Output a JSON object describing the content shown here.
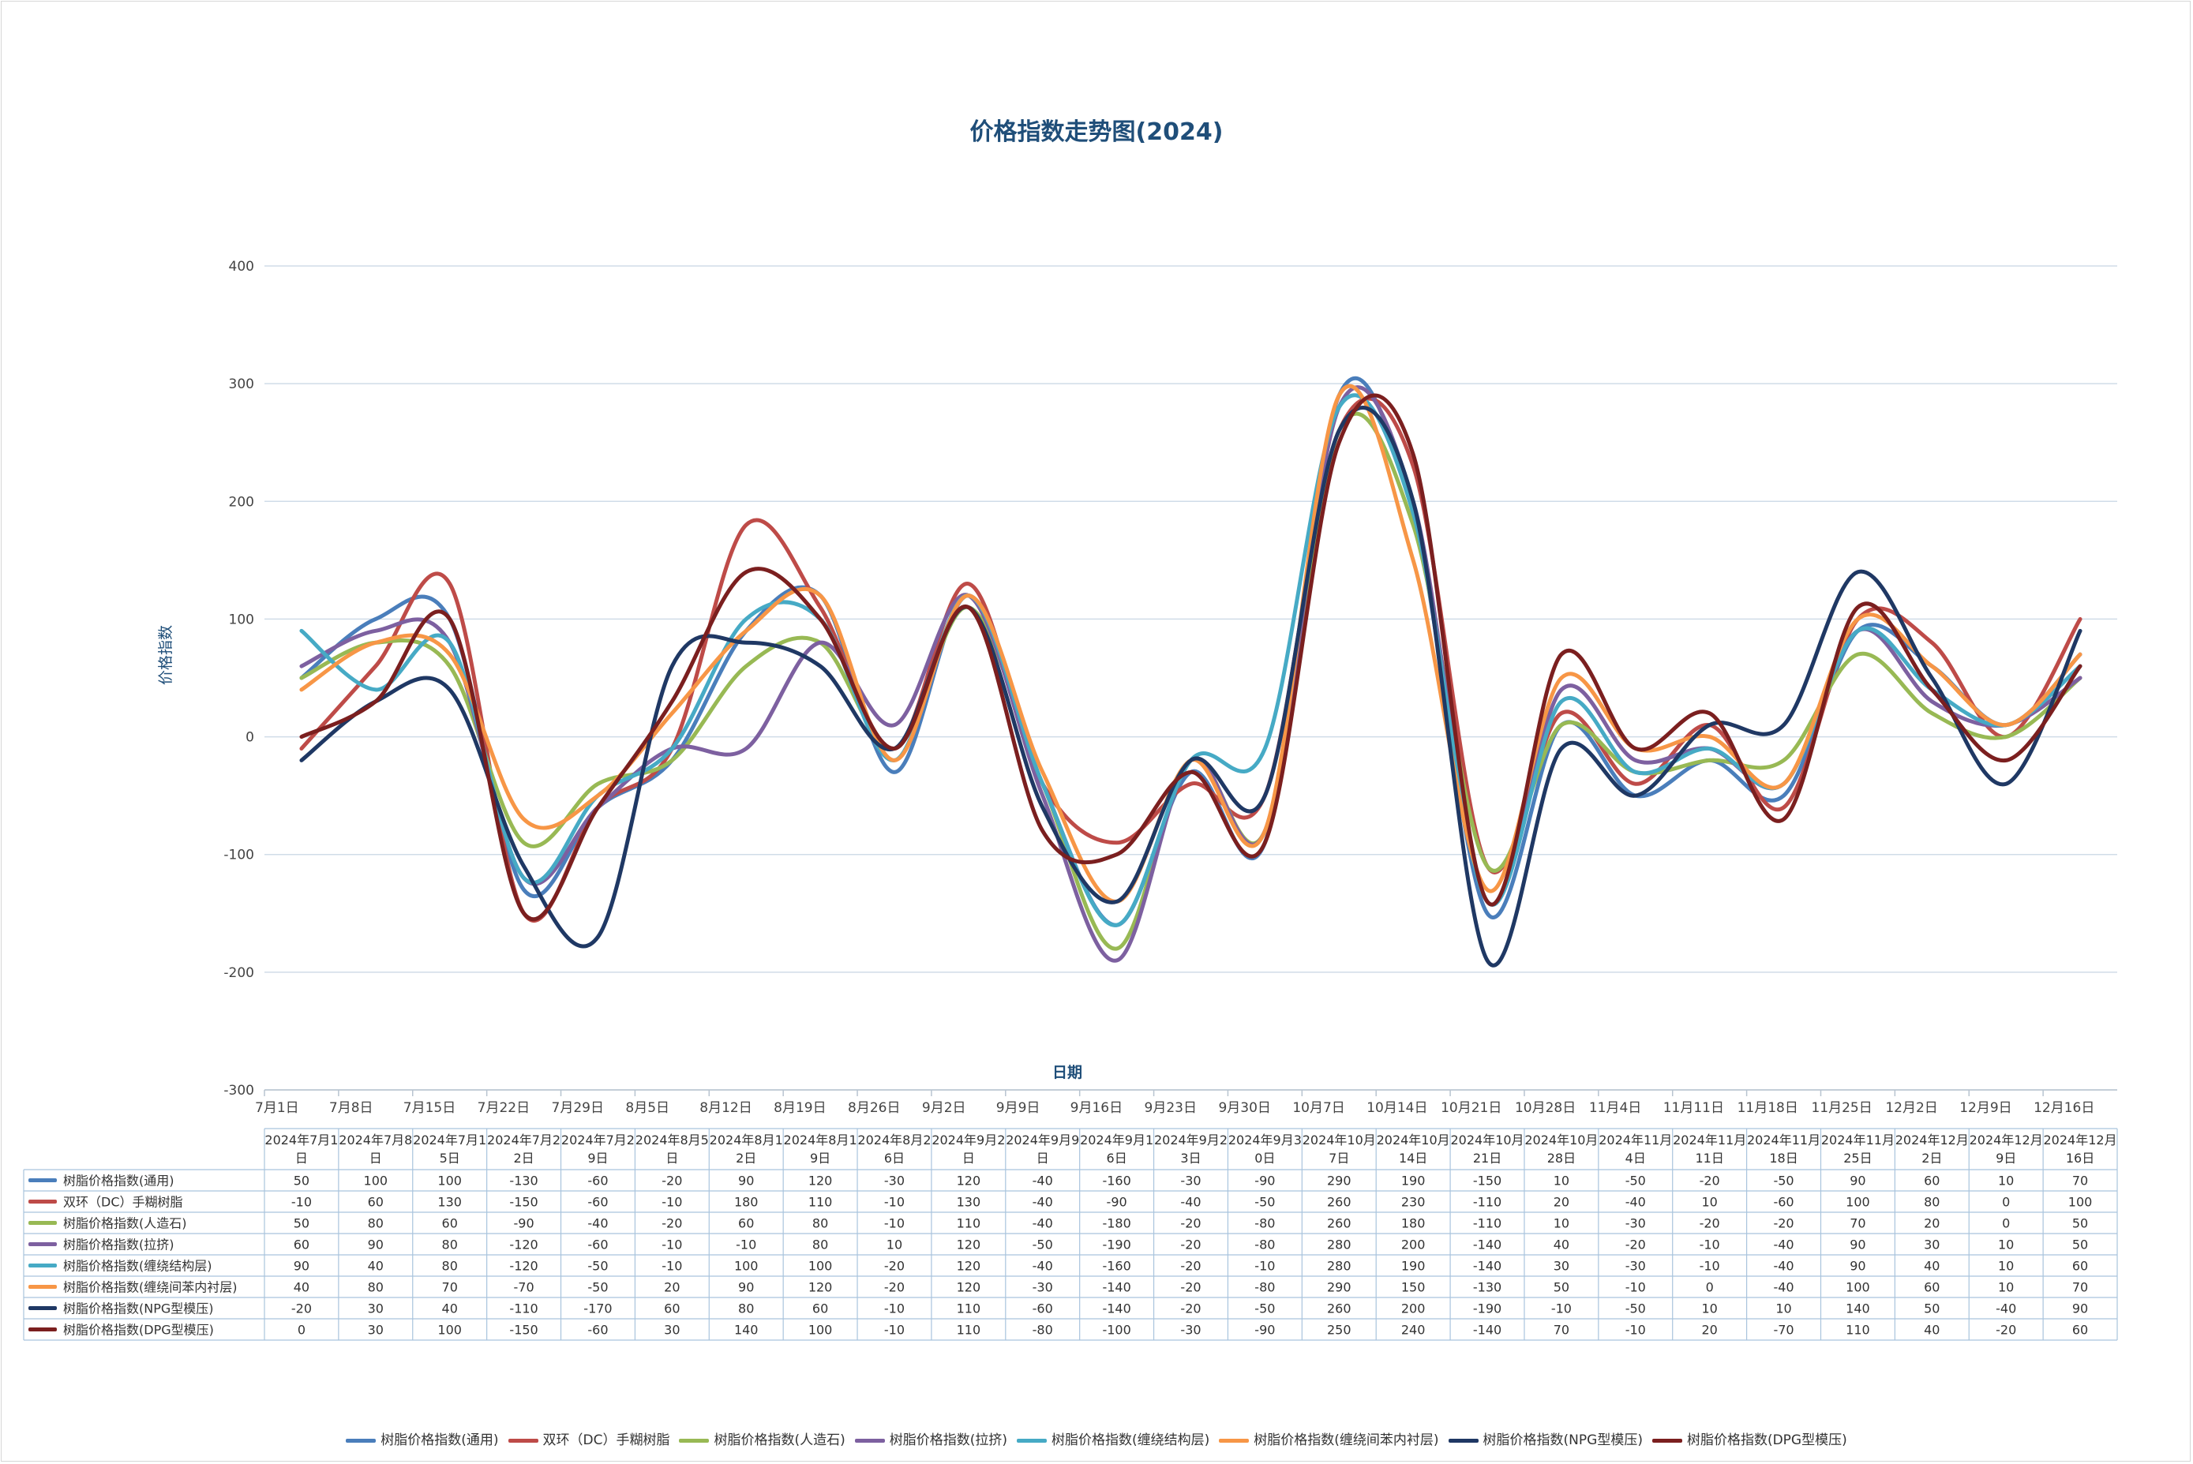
{
  "chart_data": {
    "type": "line",
    "title": "价格指数走势图(2024)",
    "xlabel": "日期",
    "ylabel": "价格指数",
    "ylim": [
      -300,
      400
    ],
    "yticks": [
      400,
      300,
      200,
      100,
      0,
      -100,
      -200,
      -300
    ],
    "grid": true,
    "legend": "bottom",
    "categories": [
      "7月1日",
      "7月8日",
      "7月15日",
      "7月22日",
      "7月29日",
      "8月5日",
      "8月12日",
      "8月19日",
      "8月26日",
      "9月2日",
      "9月9日",
      "9月16日",
      "9月23日",
      "9月30日",
      "10月7日",
      "10月14日",
      "10月21日",
      "10月28日",
      "11月4日",
      "11月11日",
      "11月18日",
      "11月25日",
      "12月2日",
      "12月9日",
      "12月16日"
    ],
    "table_headers": [
      [
        "2024年7月1",
        "日"
      ],
      [
        "2024年7月8",
        "日"
      ],
      [
        "2024年7月1",
        "5日"
      ],
      [
        "2024年7月2",
        "2日"
      ],
      [
        "2024年7月2",
        "9日"
      ],
      [
        "2024年8月5",
        "日"
      ],
      [
        "2024年8月1",
        "2日"
      ],
      [
        "2024年8月1",
        "9日"
      ],
      [
        "2024年8月2",
        "6日"
      ],
      [
        "2024年9月2",
        "日"
      ],
      [
        "2024年9月9",
        "日"
      ],
      [
        "2024年9月1",
        "6日"
      ],
      [
        "2024年9月2",
        "3日"
      ],
      [
        "2024年9月3",
        "0日"
      ],
      [
        "2024年10月",
        "7日"
      ],
      [
        "2024年10月",
        "14日"
      ],
      [
        "2024年10月",
        "21日"
      ],
      [
        "2024年10月",
        "28日"
      ],
      [
        "2024年11月",
        "4日"
      ],
      [
        "2024年11月",
        "11日"
      ],
      [
        "2024年11月",
        "18日"
      ],
      [
        "2024年11月",
        "25日"
      ],
      [
        "2024年12月",
        "2日"
      ],
      [
        "2024年12月",
        "9日"
      ],
      [
        "2024年12月",
        "16日"
      ]
    ],
    "series": [
      {
        "name": "树脂价格指数(通用)",
        "color": "#4a7ebb",
        "values": [
          50,
          100,
          100,
          -130,
          -60,
          -20,
          90,
          120,
          -30,
          120,
          -40,
          -160,
          -30,
          -90,
          290,
          190,
          -150,
          10,
          -50,
          -20,
          -50,
          90,
          60,
          10,
          70
        ]
      },
      {
        "name": "双环（DC）手糊树脂",
        "color": "#be4b48",
        "values": [
          -10,
          60,
          130,
          -150,
          -60,
          -10,
          180,
          110,
          -10,
          130,
          -40,
          -90,
          -40,
          -50,
          260,
          230,
          -110,
          20,
          -40,
          10,
          -60,
          100,
          80,
          0,
          100
        ]
      },
      {
        "name": "树脂价格指数(人造石)",
        "color": "#98b954",
        "values": [
          50,
          80,
          60,
          -90,
          -40,
          -20,
          60,
          80,
          -10,
          110,
          -40,
          -180,
          -20,
          -80,
          260,
          180,
          -110,
          10,
          -30,
          -20,
          -20,
          70,
          20,
          0,
          50
        ]
      },
      {
        "name": "树脂价格指数(拉挤)",
        "color": "#7d60a0",
        "values": [
          60,
          90,
          80,
          -120,
          -60,
          -10,
          -10,
          80,
          10,
          120,
          -50,
          -190,
          -20,
          -80,
          280,
          200,
          -140,
          40,
          -20,
          -10,
          -40,
          90,
          30,
          10,
          50
        ]
      },
      {
        "name": "树脂价格指数(缠绕结构层)",
        "color": "#46aac5",
        "values": [
          90,
          40,
          80,
          -120,
          -50,
          -10,
          100,
          100,
          -20,
          120,
          -40,
          -160,
          -20,
          -10,
          280,
          190,
          -140,
          30,
          -30,
          -10,
          -40,
          90,
          40,
          10,
          60
        ]
      },
      {
        "name": "树脂价格指数(缠绕间苯内衬层)",
        "color": "#f79646",
        "values": [
          40,
          80,
          70,
          -70,
          -50,
          20,
          90,
          120,
          -20,
          120,
          -30,
          -140,
          -20,
          -80,
          290,
          150,
          -130,
          50,
          -10,
          0,
          -40,
          100,
          60,
          10,
          70
        ]
      },
      {
        "name": "树脂价格指数(NPG型模压)",
        "color": "#1f3864",
        "values": [
          -20,
          30,
          40,
          -110,
          -170,
          60,
          80,
          60,
          -10,
          110,
          -60,
          -140,
          -20,
          -50,
          260,
          200,
          -190,
          -10,
          -50,
          10,
          10,
          140,
          50,
          -40,
          90
        ]
      },
      {
        "name": "树脂价格指数(DPG型模压)",
        "color": "#7b1f1f",
        "values": [
          0,
          30,
          100,
          -150,
          -60,
          30,
          140,
          100,
          -10,
          110,
          -80,
          -100,
          -30,
          -90,
          250,
          240,
          -140,
          70,
          -10,
          20,
          -70,
          110,
          40,
          -20,
          60
        ]
      }
    ]
  }
}
